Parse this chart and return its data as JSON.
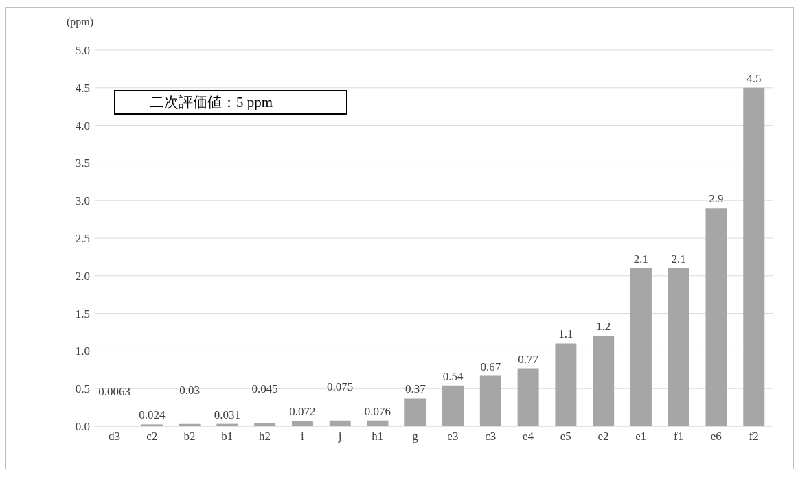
{
  "chart_data": {
    "type": "bar",
    "ylabel": "(ppm)",
    "annotations": [
      "二次評価値：5 ppm"
    ],
    "categories": [
      "d3",
      "c2",
      "b2",
      "b1",
      "h2",
      "i",
      "j",
      "h1",
      "g",
      "e3",
      "c3",
      "e4",
      "e5",
      "e2",
      "e1",
      "f1",
      "e6",
      "f2"
    ],
    "values": [
      0.0063,
      0.024,
      0.03,
      0.031,
      0.045,
      0.072,
      0.075,
      0.076,
      0.37,
      0.54,
      0.67,
      0.77,
      1.1,
      1.2,
      2.1,
      2.1,
      2.9,
      4.5
    ],
    "color": "#a6a6a6",
    "data_labels": true,
    "grid": "y",
    "ylim": [
      0,
      5
    ],
    "yticks": [
      {
        "value": 0,
        "label": "0.0"
      },
      {
        "value": 0.5,
        "label": "0.5"
      },
      {
        "value": 1,
        "label": "1.0"
      },
      {
        "value": 1.5,
        "label": "1.5"
      },
      {
        "value": 2,
        "label": "2.0"
      },
      {
        "value": 2.5,
        "label": "2.5"
      },
      {
        "value": 3,
        "label": "3.0"
      },
      {
        "value": 3.5,
        "label": "3.5"
      },
      {
        "value": 4,
        "label": "4.0"
      },
      {
        "value": 4.5,
        "label": "4.5"
      },
      {
        "value": 5,
        "label": "5.0"
      }
    ]
  }
}
